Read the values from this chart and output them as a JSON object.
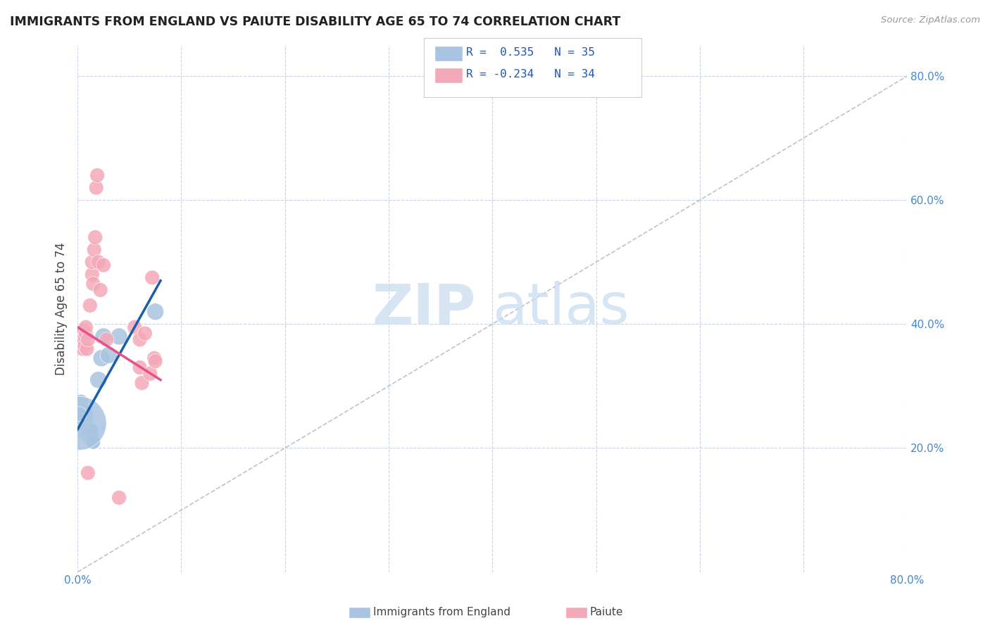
{
  "title": "IMMIGRANTS FROM ENGLAND VS PAIUTE DISABILITY AGE 65 TO 74 CORRELATION CHART",
  "source": "Source: ZipAtlas.com",
  "ylabel": "Disability Age 65 to 74",
  "xlim": [
    0.0,
    0.8
  ],
  "ylim": [
    0.0,
    0.85
  ],
  "yticks": [
    0.2,
    0.4,
    0.6,
    0.8
  ],
  "xticks": [
    0.0,
    0.1,
    0.2,
    0.3,
    0.4,
    0.5,
    0.6,
    0.7,
    0.8
  ],
  "ytick_labels": [
    "20.0%",
    "40.0%",
    "60.0%",
    "80.0%"
  ],
  "england_color": "#a8c4e0",
  "paiute_color": "#f4a8b8",
  "england_line_color": "#1a5fa8",
  "paiute_line_color": "#e8508a",
  "diagonal_color": "#b8c4d4",
  "england_scatter": [
    [
      0.003,
      0.275
    ],
    [
      0.004,
      0.255
    ],
    [
      0.004,
      0.23
    ],
    [
      0.005,
      0.245
    ],
    [
      0.005,
      0.235
    ],
    [
      0.005,
      0.26
    ],
    [
      0.006,
      0.24
    ],
    [
      0.006,
      0.25
    ],
    [
      0.006,
      0.26
    ],
    [
      0.007,
      0.225
    ],
    [
      0.007,
      0.235
    ],
    [
      0.007,
      0.25
    ],
    [
      0.008,
      0.228
    ],
    [
      0.008,
      0.24
    ],
    [
      0.008,
      0.255
    ],
    [
      0.009,
      0.225
    ],
    [
      0.009,
      0.23
    ],
    [
      0.01,
      0.22
    ],
    [
      0.01,
      0.23
    ],
    [
      0.011,
      0.218
    ],
    [
      0.011,
      0.225
    ],
    [
      0.012,
      0.215
    ],
    [
      0.012,
      0.222
    ],
    [
      0.013,
      0.215
    ],
    [
      0.013,
      0.228
    ],
    [
      0.014,
      0.215
    ],
    [
      0.015,
      0.21
    ],
    [
      0.015,
      0.21
    ],
    [
      0.002,
      0.24
    ],
    [
      0.02,
      0.31
    ],
    [
      0.023,
      0.345
    ],
    [
      0.025,
      0.38
    ],
    [
      0.03,
      0.35
    ],
    [
      0.04,
      0.38
    ],
    [
      0.075,
      0.42
    ],
    [
      0.002,
      0.255
    ]
  ],
  "england_sizes_raw": [
    15,
    15,
    15,
    15,
    15,
    15,
    15,
    15,
    15,
    15,
    15,
    15,
    15,
    15,
    15,
    15,
    15,
    15,
    15,
    15,
    15,
    15,
    15,
    15,
    15,
    15,
    15,
    15,
    200,
    20,
    20,
    20,
    20,
    20,
    20,
    15
  ],
  "paiute_scatter": [
    [
      0.004,
      0.385
    ],
    [
      0.005,
      0.375
    ],
    [
      0.005,
      0.36
    ],
    [
      0.006,
      0.375
    ],
    [
      0.006,
      0.39
    ],
    [
      0.007,
      0.365
    ],
    [
      0.007,
      0.38
    ],
    [
      0.008,
      0.385
    ],
    [
      0.008,
      0.395
    ],
    [
      0.009,
      0.36
    ],
    [
      0.01,
      0.375
    ],
    [
      0.012,
      0.43
    ],
    [
      0.014,
      0.48
    ],
    [
      0.014,
      0.5
    ],
    [
      0.015,
      0.465
    ],
    [
      0.016,
      0.52
    ],
    [
      0.017,
      0.54
    ],
    [
      0.018,
      0.62
    ],
    [
      0.019,
      0.64
    ],
    [
      0.02,
      0.5
    ],
    [
      0.022,
      0.455
    ],
    [
      0.025,
      0.495
    ],
    [
      0.028,
      0.375
    ],
    [
      0.01,
      0.16
    ],
    [
      0.04,
      0.12
    ],
    [
      0.055,
      0.395
    ],
    [
      0.06,
      0.375
    ],
    [
      0.06,
      0.33
    ],
    [
      0.062,
      0.305
    ],
    [
      0.065,
      0.385
    ],
    [
      0.07,
      0.32
    ],
    [
      0.072,
      0.475
    ],
    [
      0.074,
      0.345
    ],
    [
      0.075,
      0.34
    ]
  ],
  "paiute_sizes_raw": [
    15,
    15,
    15,
    15,
    15,
    15,
    15,
    15,
    15,
    15,
    15,
    15,
    15,
    15,
    15,
    15,
    15,
    15,
    15,
    15,
    15,
    15,
    15,
    15,
    15,
    15,
    15,
    15,
    15,
    15,
    15,
    15,
    15,
    15
  ],
  "england_line": [
    [
      0.0,
      0.23
    ],
    [
      0.08,
      0.47
    ]
  ],
  "paiute_line": [
    [
      0.0,
      0.395
    ],
    [
      0.08,
      0.31
    ]
  ],
  "diagonal_line": [
    [
      0.0,
      0.0
    ],
    [
      0.8,
      0.8
    ]
  ]
}
